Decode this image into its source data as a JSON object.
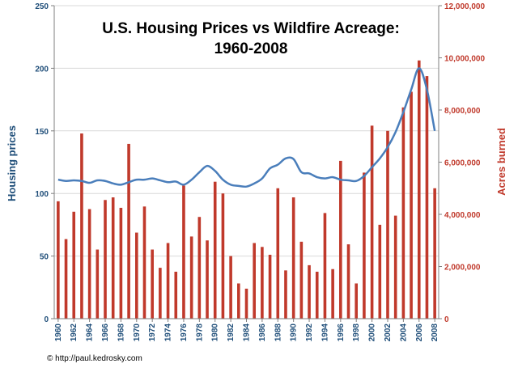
{
  "chart_data": {
    "type": "bar+line",
    "title_lines": [
      "U.S. Housing Prices vs Wildfire Acreage:",
      "1960-2008"
    ],
    "left_axis": {
      "label": "Housing prices",
      "ylim": [
        0,
        250
      ],
      "ticks": [
        "0",
        "50",
        "100",
        "150",
        "200",
        "250"
      ],
      "color": "#1f4e79"
    },
    "right_axis": {
      "label": "Acres burned",
      "ylim": [
        0,
        12000000
      ],
      "ticks": [
        "0",
        "2,000,000",
        "4,000,000",
        "6,000,000",
        "8,000,000",
        "10,000,000",
        "12,000,000"
      ],
      "color": "#c0392b"
    },
    "x_ticks": [
      "1960",
      "1962",
      "1964",
      "1966",
      "1968",
      "1970",
      "1972",
      "1974",
      "1976",
      "1978",
      "1980",
      "1982",
      "1984",
      "1986",
      "1988",
      "1990",
      "1992",
      "1994",
      "1996",
      "1998",
      "2000",
      "2002",
      "2004",
      "2006",
      "2008"
    ],
    "years": [
      1960,
      1961,
      1962,
      1963,
      1964,
      1965,
      1966,
      1967,
      1968,
      1969,
      1970,
      1971,
      1972,
      1973,
      1974,
      1975,
      1976,
      1977,
      1978,
      1979,
      1980,
      1981,
      1982,
      1983,
      1984,
      1985,
      1986,
      1987,
      1988,
      1989,
      1990,
      1991,
      1992,
      1993,
      1994,
      1995,
      1996,
      1997,
      1998,
      1999,
      2000,
      2001,
      2002,
      2003,
      2004,
      2005,
      2006,
      2007,
      2008
    ],
    "series": [
      {
        "name": "Acres burned",
        "type": "bar",
        "axis": "right",
        "color": "#c0392b",
        "values": [
          4500000,
          3050000,
          4100000,
          7100000,
          4200000,
          2650000,
          4550000,
          4650000,
          4250000,
          6700000,
          3300000,
          4300000,
          2650000,
          1950000,
          2900000,
          1800000,
          5100000,
          3150000,
          3900000,
          3000000,
          5250000,
          4800000,
          2400000,
          1350000,
          1150000,
          2900000,
          2750000,
          2450000,
          5000000,
          1850000,
          4650000,
          2950000,
          2050000,
          1800000,
          4050000,
          1900000,
          6050000,
          2850000,
          1350000,
          5600000,
          7400000,
          3600000,
          7200000,
          3950000,
          8100000,
          8700000,
          9900000,
          9300000,
          5000000
        ]
      },
      {
        "name": "Housing prices",
        "type": "line",
        "axis": "left",
        "color": "#4a7ebb",
        "values": [
          111,
          110,
          110.5,
          110,
          108.5,
          110.5,
          110,
          108,
          107,
          109,
          111,
          111,
          112,
          110.5,
          109,
          109.5,
          107,
          111,
          117,
          122,
          118,
          111,
          107,
          106,
          105.5,
          108,
          112,
          120,
          123,
          128,
          127.5,
          117,
          116,
          113,
          112,
          113,
          111,
          110.5,
          110,
          114,
          121,
          128,
          137,
          149,
          165,
          183,
          200,
          183,
          150
        ]
      }
    ],
    "credit": "© http://paul.kedrosky.com"
  }
}
